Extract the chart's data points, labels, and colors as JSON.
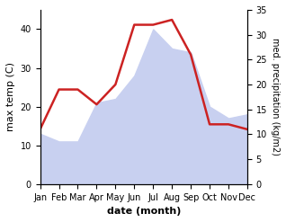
{
  "months": [
    "Jan",
    "Feb",
    "Mar",
    "Apr",
    "May",
    "Jun",
    "Jul",
    "Aug",
    "Sep",
    "Oct",
    "Nov",
    "Dec"
  ],
  "temperature": [
    13,
    11,
    11,
    21,
    22,
    28,
    40,
    35,
    34,
    20,
    17,
    18
  ],
  "precipitation": [
    11,
    19,
    19,
    16,
    20,
    32,
    32,
    33,
    26,
    12,
    12,
    11
  ],
  "temp_ylim": [
    0,
    45
  ],
  "precip_ylim": [
    0,
    35
  ],
  "temp_yticks": [
    0,
    10,
    20,
    30,
    40
  ],
  "precip_yticks": [
    0,
    5,
    10,
    15,
    20,
    25,
    30,
    35
  ],
  "xlabel": "date (month)",
  "ylabel_left": "max temp (C)",
  "ylabel_right": "med. precipitation (kg/m2)",
  "fill_color": "#c8d0f0",
  "line_color": "#cc2222",
  "line_width": 1.8,
  "background_color": "#ffffff"
}
